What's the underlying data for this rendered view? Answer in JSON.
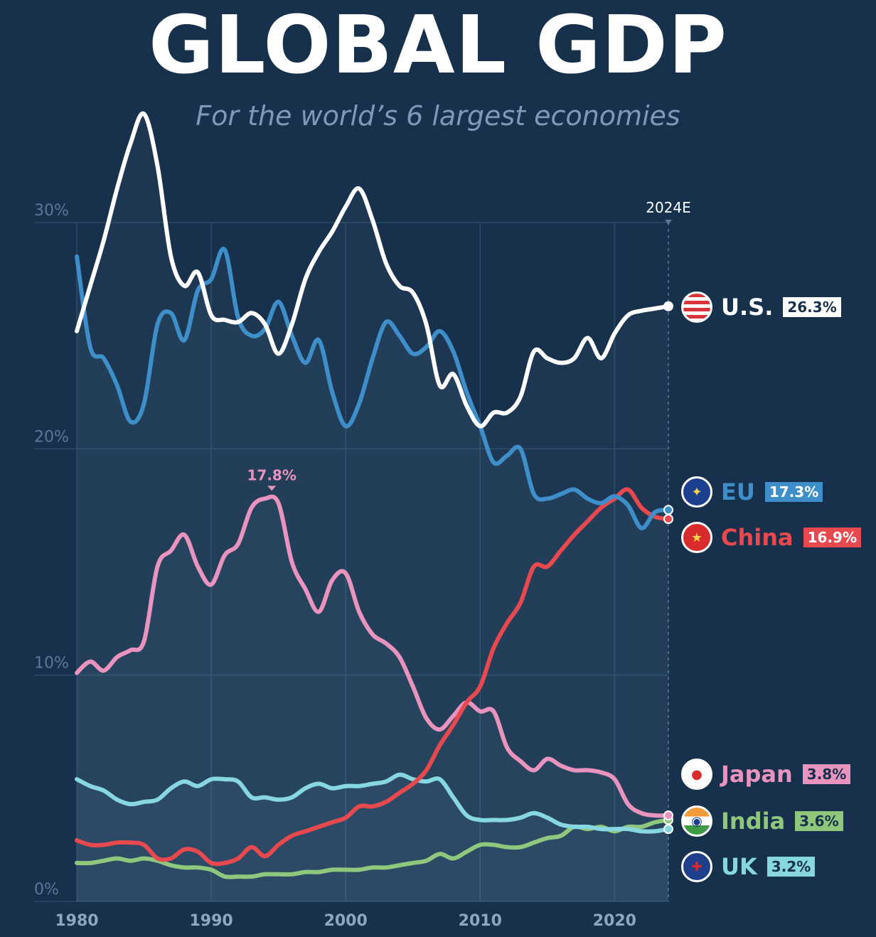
{
  "title": "GLOBAL GDP",
  "subtitle": "For the world’s 6 largest economies",
  "marker_label": "2024E",
  "peak_label": "17.8%",
  "legend": [
    {
      "key": "us",
      "name": "U.S.",
      "value": "26.3%",
      "color": "#ffffff",
      "badge_text_color": "#17304b",
      "flag_icon": "us-flag-icon"
    },
    {
      "key": "eu",
      "name": "EU",
      "value": "17.3%",
      "color": "#3d8ec9",
      "badge_text_color": "#ffffff",
      "flag_icon": "eu-flag-icon"
    },
    {
      "key": "china",
      "name": "China",
      "value": "16.9%",
      "color": "#e8494f",
      "badge_text_color": "#ffffff",
      "flag_icon": "china-flag-icon"
    },
    {
      "key": "japan",
      "name": "Japan",
      "value": "3.8%",
      "color": "#e993bf",
      "badge_text_color": "#17304b",
      "flag_icon": "japan-flag-icon"
    },
    {
      "key": "india",
      "name": "India",
      "value": "3.6%",
      "color": "#8fc77d",
      "badge_text_color": "#17304b",
      "flag_icon": "india-flag-icon"
    },
    {
      "key": "uk",
      "name": "UK",
      "value": "3.2%",
      "color": "#86d7e0",
      "badge_text_color": "#17304b",
      "flag_icon": "uk-flag-icon"
    }
  ],
  "chart_data": {
    "type": "line",
    "title": "GLOBAL GDP",
    "subtitle": "For the world’s 6 largest economies",
    "x_ticks": [
      "1980",
      "1990",
      "2000",
      "2010",
      "2020"
    ],
    "y_ticks": [
      "0%",
      "10%",
      "20%",
      "30%"
    ],
    "xlim": [
      1980,
      2024
    ],
    "ylim": [
      0,
      30
    ],
    "grid": true,
    "annotation": {
      "series": "Japan",
      "x": 1994.5,
      "y": 17.8,
      "label": "17.8%"
    },
    "series": [
      {
        "name": "U.S.",
        "color": "#ffffff",
        "x": [
          1980,
          1981,
          1982,
          1983,
          1984,
          1985,
          1986,
          1987,
          1988,
          1989,
          1990,
          1991,
          1992,
          1993,
          1994,
          1995,
          1996,
          1997,
          1998,
          1999,
          2000,
          2001,
          2002,
          2003,
          2004,
          2005,
          2006,
          2007,
          2008,
          2009,
          2010,
          2011,
          2012,
          2013,
          2014,
          2015,
          2016,
          2017,
          2018,
          2019,
          2020,
          2021,
          2022,
          2023,
          2024
        ],
        "y": [
          25.2,
          27.2,
          29.2,
          31.5,
          33.5,
          34.8,
          32.5,
          28.5,
          27.2,
          27.8,
          25.9,
          25.7,
          25.6,
          26,
          25.5,
          24.2,
          25.5,
          27.5,
          28.7,
          29.6,
          30.7,
          31.5,
          30.1,
          28.2,
          27.2,
          26.9,
          25.5,
          22.8,
          23.3,
          21.9,
          21,
          21.6,
          21.6,
          22.3,
          24.3,
          24,
          23.8,
          24,
          24.9,
          24,
          25.1,
          25.9,
          26.1,
          26.2,
          26.3
        ]
      },
      {
        "name": "EU",
        "color": "#3d8ec9",
        "x": [
          1980,
          1981,
          1982,
          1983,
          1984,
          1985,
          1986,
          1987,
          1988,
          1989,
          1990,
          1991,
          1992,
          1993,
          1994,
          1995,
          1996,
          1997,
          1998,
          1999,
          2000,
          2001,
          2002,
          2003,
          2004,
          2005,
          2006,
          2007,
          2008,
          2009,
          2010,
          2011,
          2012,
          2013,
          2014,
          2015,
          2016,
          2017,
          2018,
          2019,
          2020,
          2021,
          2022,
          2023,
          2024
        ],
        "y": [
          28.5,
          24.5,
          24,
          22.8,
          21.2,
          22,
          25.5,
          26,
          24.8,
          27,
          27.5,
          28.8,
          25.8,
          25,
          25.3,
          26.5,
          25,
          23.8,
          24.8,
          22.5,
          21,
          22,
          24,
          25.6,
          25,
          24.2,
          24.5,
          25.2,
          24.3,
          22.5,
          21,
          19.4,
          19.7,
          20,
          18,
          17.8,
          18,
          18.2,
          17.8,
          17.6,
          17.9,
          17.5,
          16.5,
          17.2,
          17.3
        ]
      },
      {
        "name": "China",
        "color": "#e8494f",
        "x": [
          1980,
          1981,
          1982,
          1983,
          1984,
          1985,
          1986,
          1987,
          1988,
          1989,
          1990,
          1991,
          1992,
          1993,
          1994,
          1995,
          1996,
          1997,
          1998,
          1999,
          2000,
          2001,
          2002,
          2003,
          2004,
          2005,
          2006,
          2007,
          2008,
          2009,
          2010,
          2011,
          2012,
          2013,
          2014,
          2015,
          2016,
          2017,
          2018,
          2019,
          2020,
          2021,
          2022,
          2023,
          2024
        ],
        "y": [
          2.7,
          2.5,
          2.5,
          2.6,
          2.6,
          2.5,
          1.9,
          1.9,
          2.3,
          2.2,
          1.7,
          1.7,
          1.9,
          2.4,
          2,
          2.5,
          2.9,
          3.1,
          3.3,
          3.5,
          3.7,
          4.2,
          4.2,
          4.4,
          4.8,
          5.2,
          5.8,
          6.9,
          7.8,
          8.8,
          9.5,
          11.2,
          12.3,
          13.2,
          14.8,
          14.8,
          15.5,
          16.2,
          16.8,
          17.4,
          17.8,
          18.2,
          17.4,
          17,
          16.9
        ]
      },
      {
        "name": "Japan",
        "color": "#e993bf",
        "x": [
          1980,
          1981,
          1982,
          1983,
          1984,
          1985,
          1986,
          1987,
          1988,
          1989,
          1990,
          1991,
          1992,
          1993,
          1994,
          1995,
          1996,
          1997,
          1998,
          1999,
          2000,
          2001,
          2002,
          2003,
          2004,
          2005,
          2006,
          2007,
          2008,
          2009,
          2010,
          2011,
          2012,
          2013,
          2014,
          2015,
          2016,
          2017,
          2018,
          2019,
          2020,
          2021,
          2022,
          2023,
          2024
        ],
        "y": [
          10.1,
          10.6,
          10.2,
          10.8,
          11.1,
          11.5,
          14.8,
          15.5,
          16.2,
          14.8,
          14,
          15.3,
          15.8,
          17.4,
          17.8,
          17.6,
          15,
          13.8,
          12.8,
          14.2,
          14.5,
          12.8,
          11.8,
          11.4,
          10.8,
          9.5,
          8.1,
          7.6,
          8.2,
          8.8,
          8.4,
          8.4,
          6.8,
          6.2,
          5.8,
          6.3,
          6,
          5.8,
          5.8,
          5.7,
          5.4,
          4.3,
          3.9,
          3.8,
          3.8
        ]
      },
      {
        "name": "India",
        "color": "#8fc77d",
        "x": [
          1980,
          1981,
          1982,
          1983,
          1984,
          1985,
          1986,
          1987,
          1988,
          1989,
          1990,
          1991,
          1992,
          1993,
          1994,
          1995,
          1996,
          1997,
          1998,
          1999,
          2000,
          2001,
          2002,
          2003,
          2004,
          2005,
          2006,
          2007,
          2008,
          2009,
          2010,
          2011,
          2012,
          2013,
          2014,
          2015,
          2016,
          2017,
          2018,
          2019,
          2020,
          2021,
          2022,
          2023,
          2024
        ],
        "y": [
          1.7,
          1.7,
          1.8,
          1.9,
          1.8,
          1.9,
          1.8,
          1.6,
          1.5,
          1.5,
          1.4,
          1.1,
          1.1,
          1.1,
          1.2,
          1.2,
          1.2,
          1.3,
          1.3,
          1.4,
          1.4,
          1.4,
          1.5,
          1.5,
          1.6,
          1.7,
          1.8,
          2.1,
          1.9,
          2.2,
          2.5,
          2.5,
          2.4,
          2.4,
          2.6,
          2.8,
          2.9,
          3.3,
          3.2,
          3.3,
          3.1,
          3.3,
          3.3,
          3.5,
          3.6
        ]
      },
      {
        "name": "UK",
        "color": "#86d7e0",
        "x": [
          1980,
          1981,
          1982,
          1983,
          1984,
          1985,
          1986,
          1987,
          1988,
          1989,
          1990,
          1991,
          1992,
          1993,
          1994,
          1995,
          1996,
          1997,
          1998,
          1999,
          2000,
          2001,
          2002,
          2003,
          2004,
          2005,
          2006,
          2007,
          2008,
          2009,
          2010,
          2011,
          2012,
          2013,
          2014,
          2015,
          2016,
          2017,
          2018,
          2019,
          2020,
          2021,
          2022,
          2023,
          2024
        ],
        "y": [
          5.4,
          5.1,
          4.9,
          4.5,
          4.3,
          4.4,
          4.5,
          5,
          5.3,
          5.1,
          5.4,
          5.4,
          5.3,
          4.6,
          4.6,
          4.5,
          4.6,
          5,
          5.2,
          5,
          5.1,
          5.1,
          5.2,
          5.3,
          5.6,
          5.4,
          5.3,
          5.4,
          4.6,
          3.8,
          3.6,
          3.6,
          3.6,
          3.7,
          3.9,
          3.7,
          3.4,
          3.3,
          3.3,
          3.2,
          3.2,
          3.2,
          3.1,
          3.1,
          3.2
        ]
      }
    ]
  }
}
